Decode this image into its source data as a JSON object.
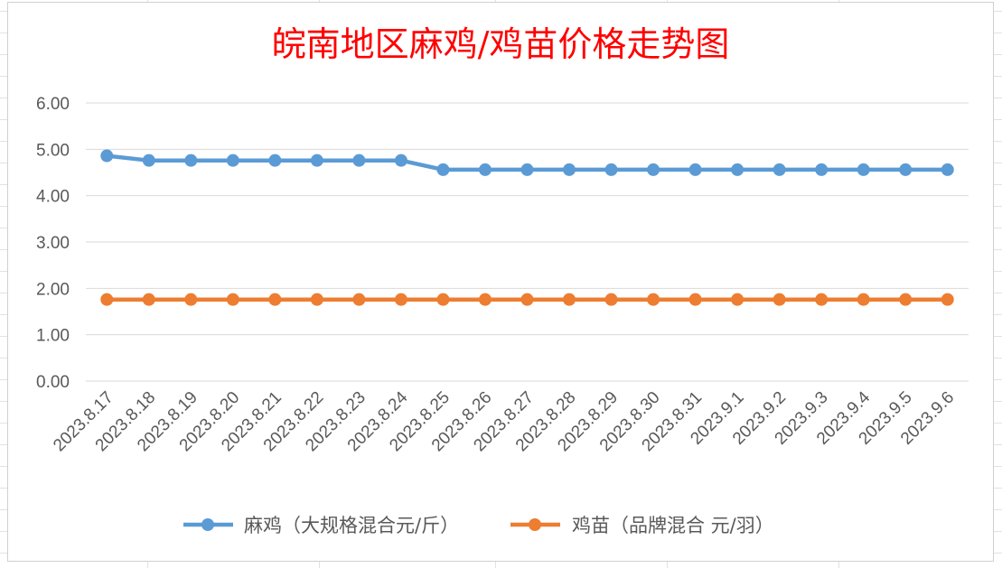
{
  "chart_data": {
    "type": "line",
    "title": "皖南地区麻鸡/鸡苗价格走势图",
    "xlabel": "",
    "ylabel": "",
    "ylim": [
      0,
      6
    ],
    "y_ticks": [
      "0.00",
      "1.00",
      "2.00",
      "3.00",
      "4.00",
      "5.00",
      "6.00"
    ],
    "grid": true,
    "legend_position": "bottom",
    "categories": [
      "2023.8.17",
      "2023.8.18",
      "2023.8.19",
      "2023.8.20",
      "2023.8.21",
      "2023.8.22",
      "2023.8.23",
      "2023.8.24",
      "2023.8.25",
      "2023.8.26",
      "2023.8.27",
      "2023.8.28",
      "2023.8.29",
      "2023.8.30",
      "2023.8.31",
      "2023.9.1",
      "2023.9.2",
      "2023.9.3",
      "2023.9.4",
      "2023.9.5",
      "2023.9.6"
    ],
    "series": [
      {
        "name": "麻鸡（大规格混合元/斤）",
        "color": "#5b9bd5",
        "values": [
          4.86,
          4.76,
          4.76,
          4.76,
          4.76,
          4.76,
          4.76,
          4.76,
          4.56,
          4.56,
          4.56,
          4.56,
          4.56,
          4.56,
          4.56,
          4.56,
          4.56,
          4.56,
          4.56,
          4.56,
          4.56
        ]
      },
      {
        "name": "鸡苗（品牌混合 元/羽）",
        "color": "#ed7d31",
        "values": [
          1.76,
          1.76,
          1.76,
          1.76,
          1.76,
          1.76,
          1.76,
          1.76,
          1.76,
          1.76,
          1.76,
          1.76,
          1.76,
          1.76,
          1.76,
          1.76,
          1.76,
          1.76,
          1.76,
          1.76,
          1.76
        ]
      }
    ]
  },
  "colors": {
    "title": "#ff0000",
    "axis_text": "#595959",
    "gridline": "#d9d9d9",
    "legend_text": "#595959"
  }
}
